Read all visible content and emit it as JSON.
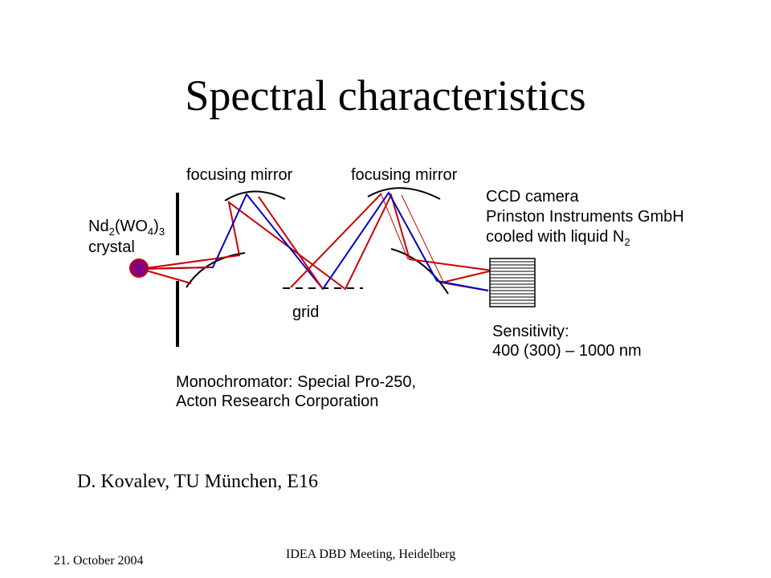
{
  "slide": {
    "title": "Spectral characteristics",
    "author": "D. Kovalev, TU München, E16",
    "footer_date": "21. October 2004",
    "footer_meeting": "IDEA DBD Meeting, Heidelberg"
  },
  "diagram": {
    "crystal_formula": {
      "base1": "Nd",
      "sub1": "2",
      "base2": "(WO",
      "sub2": "4",
      "base3": ")",
      "sub3": "3"
    },
    "crystal_word": "crystal",
    "mirror_label_left": "focusing mirror",
    "mirror_label_right": "focusing mirror",
    "grid_label": "grid",
    "ccd_line1": "CCD camera",
    "ccd_line2": "Prinston Instruments GmbH",
    "ccd_line3_text": "cooled with liquid N",
    "ccd_line3_sub": "2",
    "sensitivity_line1": "Sensitivity:",
    "sensitivity_line2": "400 (300) – 1000 nm",
    "monochromator_line1": "Monochromator: Special Pro-250,",
    "monochromator_line2": "Acton Research Corporation",
    "colors": {
      "red_beam": "#cc0000",
      "blue_beam": "#0000cc",
      "crystal_fill": "#800080",
      "crystal_stroke": "#cc0000"
    }
  }
}
